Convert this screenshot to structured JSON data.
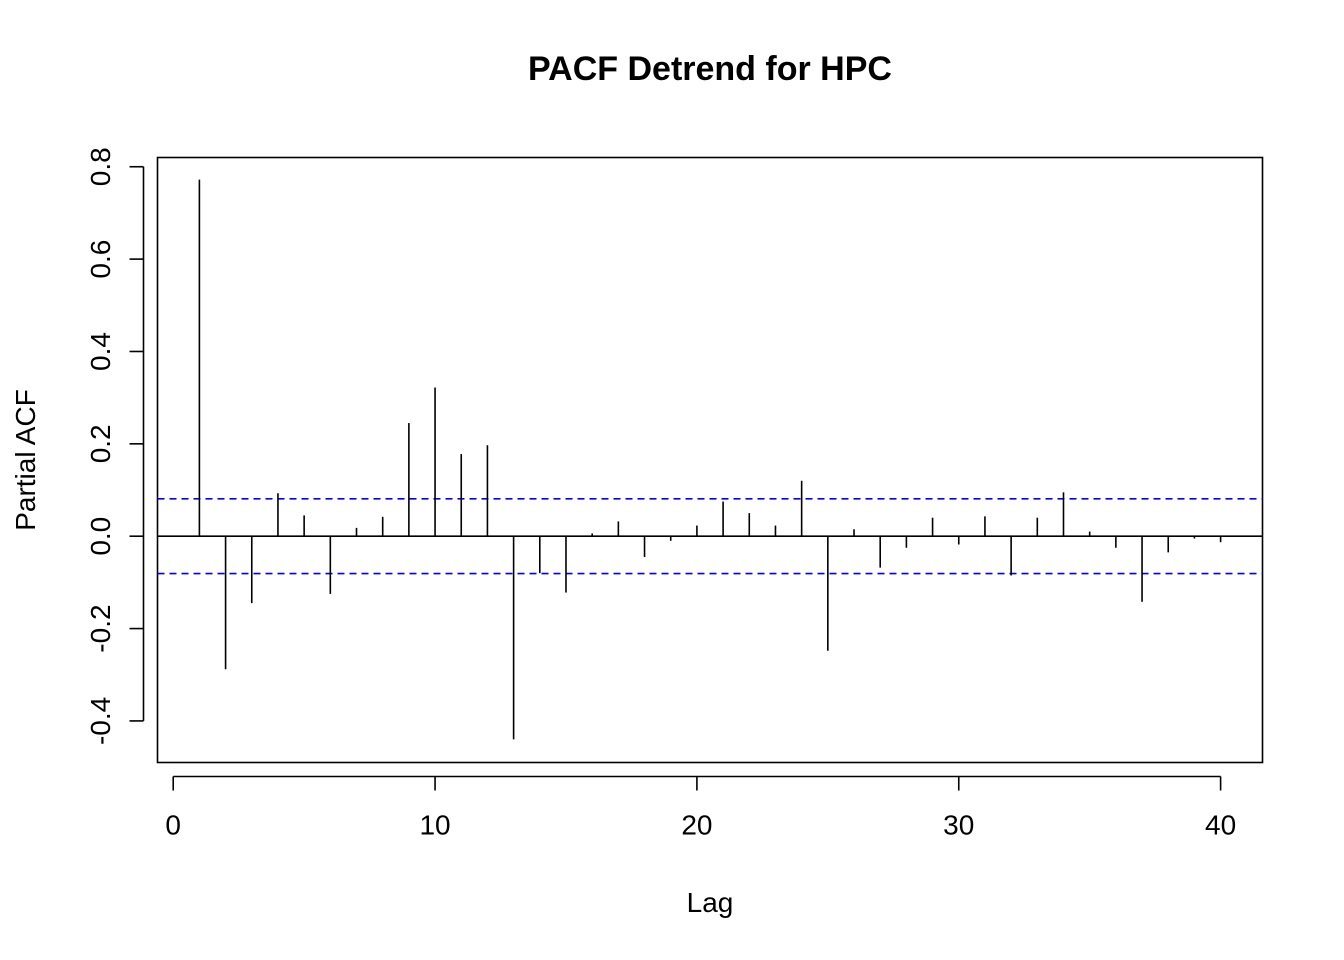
{
  "chart_data": {
    "type": "bar",
    "title": "PACF Detrend for HPC",
    "xlabel": "Lag",
    "ylabel": "Partial ACF",
    "xlim": [
      -0.6,
      41.6
    ],
    "ylim": [
      -0.49,
      0.82
    ],
    "x_ticks": [
      "0",
      "10",
      "20",
      "30",
      "40"
    ],
    "y_ticks": [
      "-0.4",
      "-0.2",
      "0.0",
      "0.2",
      "0.4",
      "0.6",
      "0.8"
    ],
    "confidence_limit": 0.081,
    "confidence_line_color": "#0000ff",
    "series": [
      {
        "lags": [
          1,
          2,
          3,
          4,
          5,
          6,
          7,
          8,
          9,
          10,
          11,
          12,
          13,
          14,
          15,
          16,
          17,
          18,
          19,
          20,
          21,
          22,
          23,
          24,
          25,
          26,
          27,
          28,
          29,
          30,
          31,
          32,
          33,
          34,
          35,
          36,
          37,
          38,
          39,
          40
        ],
        "values": [
          0.772,
          -0.288,
          -0.145,
          0.093,
          0.045,
          -0.125,
          0.018,
          0.042,
          0.245,
          0.322,
          0.178,
          0.197,
          -0.44,
          -0.08,
          -0.122,
          0.006,
          0.032,
          -0.045,
          -0.01,
          0.023,
          0.075,
          0.05,
          0.023,
          0.12,
          -0.248,
          0.015,
          -0.068,
          -0.025,
          0.04,
          -0.018,
          0.043,
          -0.085,
          0.04,
          0.095,
          0.01,
          -0.025,
          -0.142,
          -0.035,
          -0.005,
          -0.013
        ]
      }
    ],
    "grid": false
  }
}
